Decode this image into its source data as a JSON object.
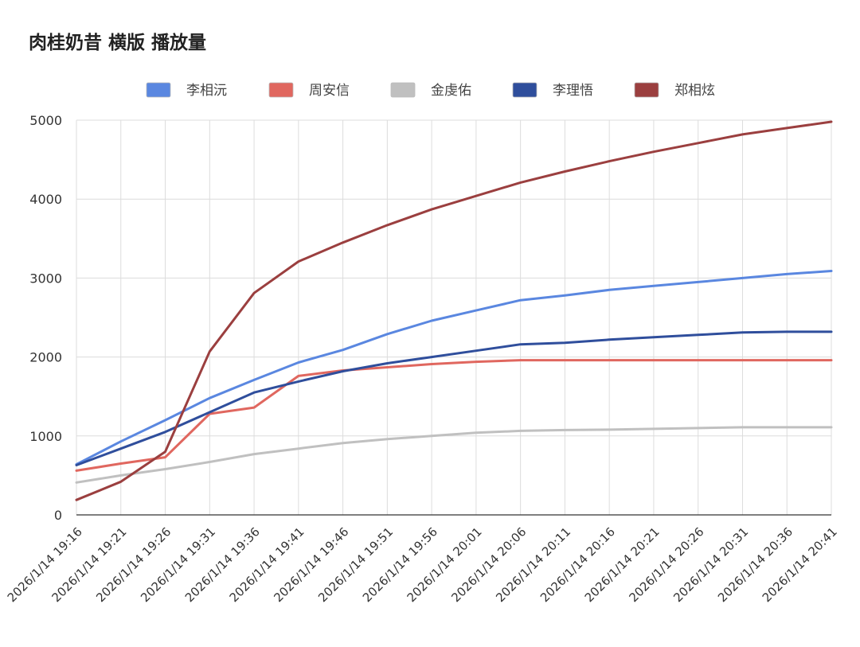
{
  "chart_data": {
    "type": "line",
    "title": "肉桂奶昔 横版 播放量",
    "xlabel": "",
    "ylabel": "",
    "ylim": [
      0,
      5000
    ],
    "yticks": [
      0,
      1000,
      2000,
      3000,
      4000,
      5000
    ],
    "grid": true,
    "legend_position": "top",
    "x": [
      "2026/1/14 19:16",
      "2026/1/14 19:21",
      "2026/1/14 19:26",
      "2026/1/14 19:31",
      "2026/1/14 19:36",
      "2026/1/14 19:41",
      "2026/1/14 19:46",
      "2026/1/14 19:51",
      "2026/1/14 19:56",
      "2026/1/14 20:01",
      "2026/1/14 20:06",
      "2026/1/14 20:11",
      "2026/1/14 20:16",
      "2026/1/14 20:21",
      "2026/1/14 20:26",
      "2026/1/14 20:31",
      "2026/1/14 20:36",
      "2026/1/14 20:41"
    ],
    "series": [
      {
        "name": "李相沅",
        "color": "#5a87e0",
        "values": [
          640,
          930,
          1200,
          1480,
          1710,
          1930,
          2090,
          2290,
          2460,
          2590,
          2720,
          2780,
          2850,
          2900,
          2950,
          3000,
          3050,
          3090
        ]
      },
      {
        "name": "周安信",
        "color": "#e0675f",
        "values": [
          560,
          650,
          730,
          1280,
          1360,
          1760,
          1830,
          1870,
          1910,
          1940,
          1960,
          1960,
          1960,
          1960,
          1960,
          1960,
          1960,
          1960
        ]
      },
      {
        "name": "金虔佑",
        "color": "#c0c0c0",
        "values": [
          410,
          500,
          580,
          670,
          770,
          840,
          910,
          960,
          1000,
          1040,
          1065,
          1075,
          1080,
          1090,
          1100,
          1110,
          1110,
          1110
        ]
      },
      {
        "name": "李理悟",
        "color": "#2f4e9c",
        "values": [
          630,
          840,
          1050,
          1300,
          1550,
          1690,
          1820,
          1920,
          2000,
          2080,
          2160,
          2180,
          2220,
          2250,
          2280,
          2310,
          2320,
          2320
        ]
      },
      {
        "name": "郑相炫",
        "color": "#9b3f3f",
        "values": [
          190,
          420,
          800,
          2070,
          2810,
          3210,
          3450,
          3670,
          3870,
          4040,
          4210,
          4350,
          4480,
          4600,
          4710,
          4820,
          4900,
          4980
        ]
      }
    ]
  }
}
